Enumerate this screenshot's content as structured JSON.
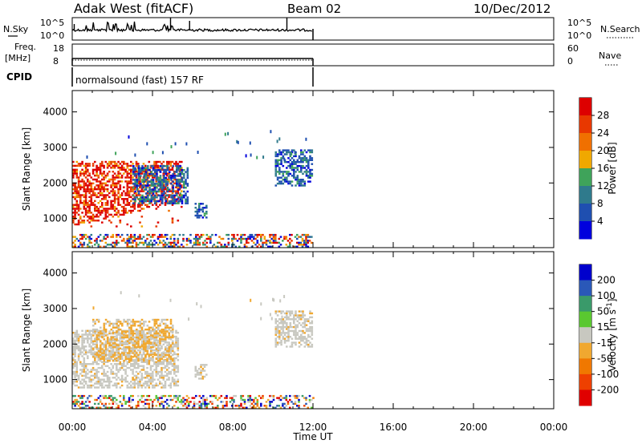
{
  "header": {
    "title": "Adak West (fitACF)",
    "beam": "Beam 02",
    "date": "10/Dec/2012"
  },
  "noise_panel": {
    "left_label": "N.Sky",
    "right_label": "N.Search",
    "ticks": [
      "10^5",
      "10^0"
    ]
  },
  "freq_panel": {
    "left_label_1": "Freq.",
    "left_label_2": "[MHz]",
    "left_ticks": [
      "18",
      "8"
    ],
    "right_ticks": [
      "60",
      "0"
    ],
    "right_label": "Nave"
  },
  "cpid": {
    "label": "CPID",
    "text": "normalsound (fast) 157 RF"
  },
  "time_axis": {
    "label": "Time UT",
    "ticks": [
      "00:00",
      "04:00",
      "08:00",
      "12:00",
      "16:00",
      "20:00",
      "00:00"
    ]
  },
  "colors": {
    "power_scale": [
      "#0000dd",
      "#1f4fb0",
      "#2f7a8c",
      "#3fa35a",
      "#f0a800",
      "#f07000",
      "#e83800",
      "#dd0000"
    ],
    "velocity_scale": [
      "#e00000",
      "#ee4000",
      "#f07800",
      "#f0a830",
      "#c8c8c0",
      "#5ac830",
      "#3a9a6a",
      "#2a58b8",
      "#0000cc"
    ]
  },
  "chart_data": [
    {
      "type": "heatmap",
      "panel": "power",
      "xlabel": "Time UT",
      "ylabel": "Slant Range [km]",
      "x_range_hours": [
        0,
        24
      ],
      "ylim": [
        180,
        4600
      ],
      "yticks": [
        "1000",
        "2000",
        "3000",
        "4000"
      ],
      "colorbar": {
        "label": "Power [dB]",
        "range": [
          0,
          32
        ],
        "ticks": [
          "4",
          "8",
          "12",
          "16",
          "20",
          "24",
          "28"
        ]
      },
      "data_extent_hours": [
        0,
        12
      ],
      "echo_regions": [
        {
          "t0": 0.0,
          "t1": 5.4,
          "r0": 750,
          "r1": 2600,
          "level": "high"
        },
        {
          "t0": 3.0,
          "t1": 5.7,
          "r0": 1400,
          "r1": 2500,
          "level": "low"
        },
        {
          "t0": 6.1,
          "t1": 6.7,
          "r0": 1000,
          "r1": 1400,
          "level": "low"
        },
        {
          "t0": 10.1,
          "t1": 11.9,
          "r0": 1900,
          "r1": 2900,
          "level": "low"
        },
        {
          "t0": 0.0,
          "t1": 12.0,
          "r0": 180,
          "r1": 550,
          "level": "mixed"
        }
      ]
    },
    {
      "type": "heatmap",
      "panel": "velocity",
      "xlabel": "Time UT",
      "ylabel": "Slant Range [km]",
      "x_range_hours": [
        0,
        24
      ],
      "ylim": [
        180,
        4600
      ],
      "yticks": [
        "1000",
        "2000",
        "3000",
        "4000"
      ],
      "colorbar": {
        "label": "Velocity [m s^-1]",
        "range": [
          -250,
          250
        ],
        "ticks": [
          "200",
          "100",
          "50",
          "15",
          "-15",
          "-50",
          "-100",
          "-200"
        ]
      },
      "data_extent_hours": [
        0,
        12
      ],
      "echo_regions": [
        {
          "t0": 0.0,
          "t1": 5.3,
          "r0": 750,
          "r1": 2400,
          "level": "near-zero"
        },
        {
          "t0": 1.0,
          "t1": 5.0,
          "r0": 1500,
          "r1": 2700,
          "level": "negative"
        },
        {
          "t0": 6.1,
          "t1": 6.7,
          "r0": 1000,
          "r1": 1400,
          "level": "near-zero"
        },
        {
          "t0": 10.1,
          "t1": 11.9,
          "r0": 1900,
          "r1": 2900,
          "level": "near-zero"
        },
        {
          "t0": 0.0,
          "t1": 12.0,
          "r0": 180,
          "r1": 550,
          "level": "mixed"
        }
      ]
    }
  ]
}
